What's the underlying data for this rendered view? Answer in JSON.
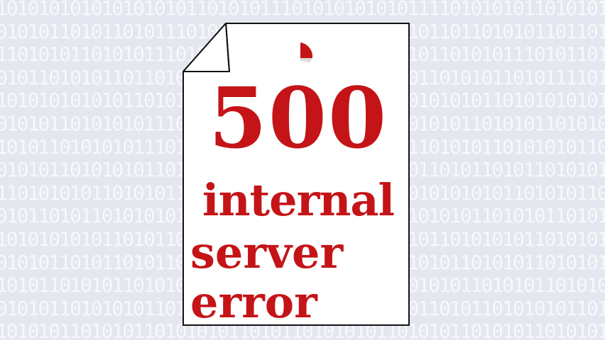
{
  "background": {
    "pattern_rows": [
      "101010101010101010110101011101010101010111101010101101010101110",
      "010101101011010111010111101011011100101101101101010110110110101",
      "110101011010101110101010101010110101010101101010111010110101010",
      "010110101011011010101011101011010110101011010101101011110100101",
      "101010101010110101010110101011010101101010101011010101010110101",
      "010101101010101110101011010101101011101010101101010110101011010",
      "101011010101011101010101101011010101010110101011010101011010101",
      "010101101010101101011010110101010110101011010110101101010101101",
      "110101010110101011010101011010110101011010101010110101011010101",
      "010110101101010101101010110101011010101101010110101011010101101",
      "101010101011010110101011010101101011010101101010101101010110101",
      "010101101011010110101010110101011010110101011010101101010101101",
      "101011010101101010101101011010101101011010101101010110101011010",
      "010101101010101101011010101101010110101011010110101010110101101",
      "101010110101011010101011010110101010110101011010101101010101101"
    ],
    "pattern_color": "#f7f8fb",
    "base_color": "#e4e7ef"
  },
  "document": {
    "code": "500",
    "line1": "internal",
    "line2": "server",
    "line3": "error",
    "text_color": "#c41418",
    "paper_color": "#ffffff",
    "outline_color": "#111111"
  }
}
